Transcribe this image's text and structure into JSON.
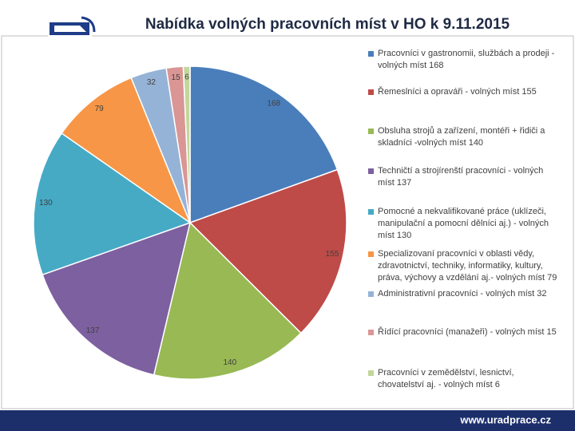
{
  "chart_data": {
    "type": "pie",
    "title": "Nabídka volných pracovních míst v HO k 9.11.2015",
    "categories": [
      "Pracovníci v gastronomii, službách a prodeji - volných míst 168",
      "Řemeslníci a opraváři - volných míst 155",
      "Obsluha strojů a zařízení, montéři + řidiči a skladníci -volných míst 140",
      "Techničtí a strojírenští pracovníci - volných míst 137",
      "Pomocné a nekvalifikované práce (uklízeči, manipulační a pomocní dělníci aj.) - volných míst 130",
      "Specializovaní pracovníci v oblasti vědy, zdravotnictví, techniky, informatiky, kultury, práva, výchovy a vzdělání aj.- volných míst 79",
      "Administrativní pracovníci - volných míst 32",
      "Řídící pracovníci (manažeři) - volných míst 15",
      "Pracovníci v zemědělství, lesnictví, chovatelství aj. - volných míst 6"
    ],
    "values": [
      168,
      155,
      140,
      137,
      130,
      79,
      32,
      15,
      6
    ],
    "colors": [
      "#4a7ebb",
      "#be4b48",
      "#98b954",
      "#7d60a0",
      "#46aac5",
      "#f79646",
      "#95b3d7",
      "#d99694",
      "#c3d69b"
    ],
    "legend": "right"
  },
  "footer": "www.uradprace.cz"
}
